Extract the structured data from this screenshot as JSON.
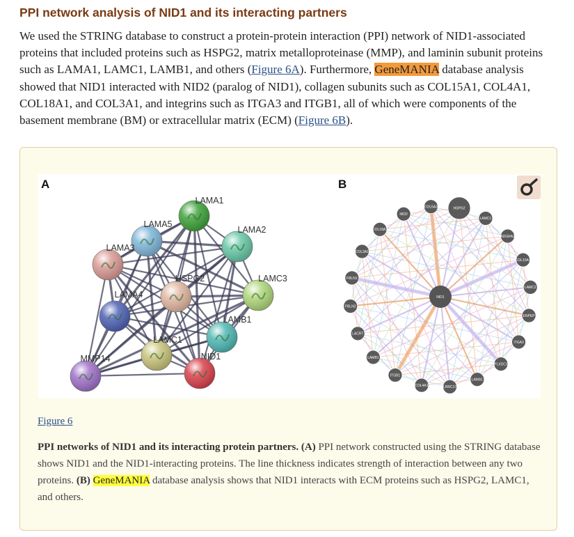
{
  "section": {
    "title": "PPI network analysis of NID1 and its interacting partners"
  },
  "paragraph": {
    "p1": "We used the STRING database to construct a protein-protein interaction (PPI) network of NID1-associated proteins that included proteins such as HSPG2, matrix metalloproteinase (MMP), and laminin subunit proteins such as LAMA1, LAMC1, LAMB1, and others (",
    "link1": "Figure 6A",
    "p2": "). Furthermore, ",
    "highlight": "GeneMANIA",
    "p3": " database analysis showed that NID1 interacted with NID2 (paralog of NID1), collagen subunits such as COL15A1, COL4A1, COL18A1, and COL3A1, and integrins such as ITGA3 and ITGB1, all of which were components of the basement membrane (BM) or extracellular matrix (ECM) (",
    "link2": "Figure 6B",
    "p4": ")."
  },
  "figure": {
    "panel_a_letter": "A",
    "panel_b_letter": "B",
    "link_label": "Figure 6",
    "caption": {
      "title": "PPI networks of NID1 and its interacting protein partners.",
      "a_marker": "(A)",
      "a_text": " PPI network constructed using the STRING database shows NID1 and the NID1-interacting proteins. The line thickness indicates strength of interaction between any two proteins. ",
      "b_marker": "(B)",
      "b_pre": " ",
      "b_highlight": "GeneMANIA",
      "b_text": " database analysis shows that NID1 interacts with ECM proteins such as HSPG2, LAMC1, and others."
    },
    "string_network": {
      "nodes": [
        {
          "id": "LAMA1",
          "label": "LAMA1",
          "color": "#3fa23a"
        },
        {
          "id": "LAMA5",
          "label": "LAMA5",
          "color": "#7fb6d8"
        },
        {
          "id": "LAMA2",
          "label": "LAMA2",
          "color": "#68c7a7"
        },
        {
          "id": "LAMA3",
          "label": "LAMA3",
          "color": "#d99a95"
        },
        {
          "id": "HSPG2",
          "label": "HSPG2",
          "color": "#e0b6a0"
        },
        {
          "id": "LAMC3",
          "label": "LAMC3",
          "color": "#aed67a"
        },
        {
          "id": "LAMA4",
          "label": "LAMA4",
          "color": "#4f62b5"
        },
        {
          "id": "LAMB1",
          "label": "LAMB1",
          "color": "#4fb7b2"
        },
        {
          "id": "LAMC1",
          "label": "LAMC1",
          "color": "#c8c27a"
        },
        {
          "id": "NID1",
          "label": "NID1",
          "color": "#d9414c"
        },
        {
          "id": "MMP14",
          "label": "MMP14",
          "color": "#a070c8"
        }
      ]
    },
    "genemania_network": {
      "center": "NID1",
      "nodes": [
        "COL6A3",
        "HSPG2",
        "LAMC1",
        "ADGRA2",
        "COL15A1",
        "LAMC2",
        "ENPEP",
        "ITGA3",
        "PLXDC1",
        "LAMA1",
        "LRRC17",
        "COL4A1",
        "ITGB1",
        "LAMB1",
        "LACRT",
        "FBLN2",
        "FBLN1",
        "COL3A1",
        "COL18A1",
        "NID2"
      ]
    },
    "icon": "ring-logo-icon"
  }
}
